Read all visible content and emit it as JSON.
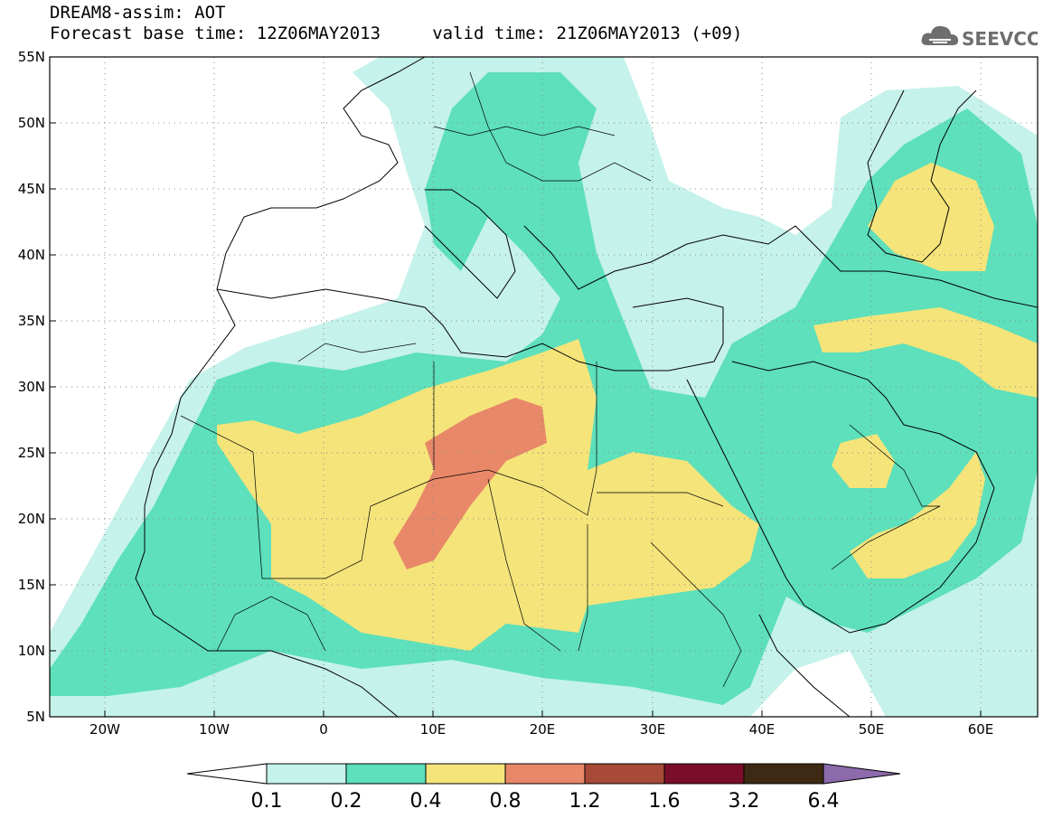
{
  "header": {
    "line1": "DREAM8-assim: AOT",
    "line2": "Forecast base time: 12Z06MAY2013     valid time: 21Z06MAY2013 (+09)"
  },
  "logo": {
    "text": "SEEVCCC",
    "icon": "cloud-icon"
  },
  "map": {
    "lon_range": [
      -25,
      65
    ],
    "lat_range": [
      5,
      55
    ],
    "lat_ticks": [
      "55N",
      "50N",
      "45N",
      "40N",
      "35N",
      "30N",
      "25N",
      "20N",
      "15N",
      "10N",
      "5N"
    ],
    "lon_ticks": [
      "20W",
      "10W",
      "0",
      "10E",
      "20E",
      "30E",
      "40E",
      "50E",
      "60E"
    ],
    "grid": "dotted"
  },
  "colorbar": {
    "levels": [
      "0.1",
      "0.2",
      "0.4",
      "0.8",
      "1.2",
      "1.6",
      "3.2",
      "6.4"
    ],
    "colors": [
      "#ffffff",
      "#c5f2ea",
      "#5de0bb",
      "#f5e47a",
      "#e88869",
      "#a84a38",
      "#7a0e2a",
      "#3e2a14",
      "#8c6aab"
    ]
  }
}
